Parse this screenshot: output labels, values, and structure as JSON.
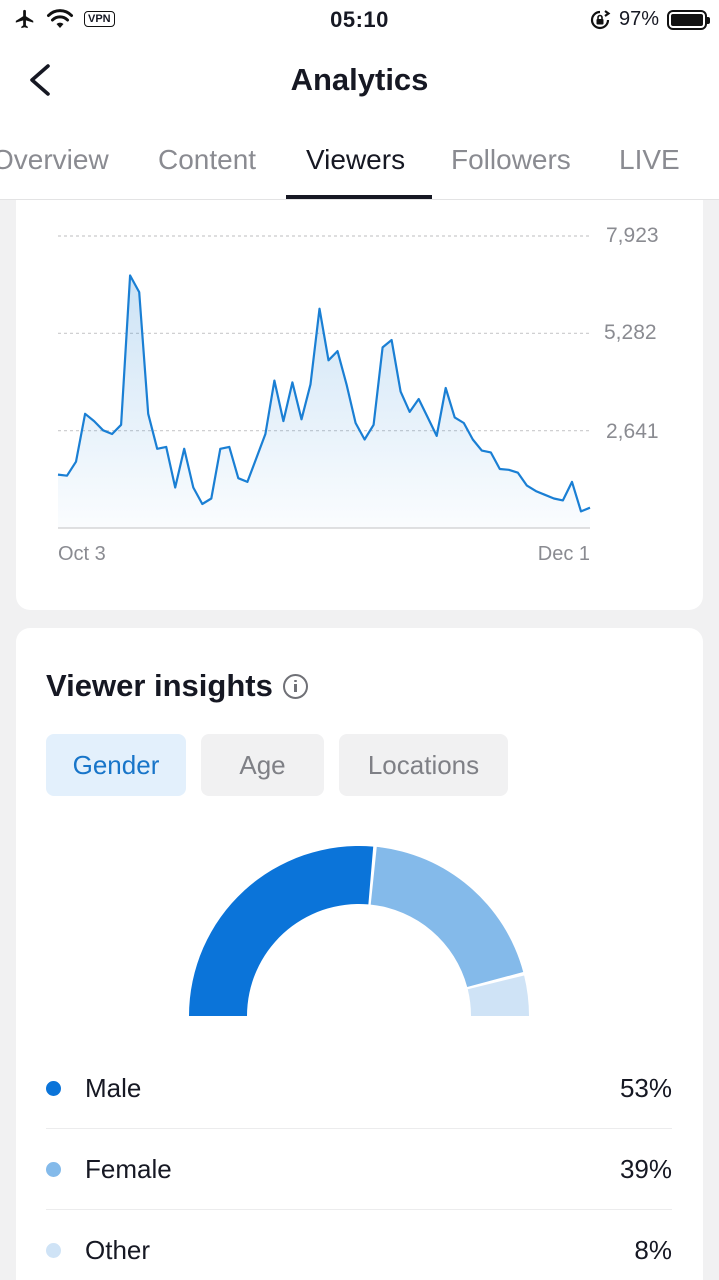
{
  "status_bar": {
    "time": "05:10",
    "vpn": "VPN",
    "battery": "97%"
  },
  "header": {
    "title": "Analytics"
  },
  "tabs": [
    {
      "label": "Overview",
      "active": false
    },
    {
      "label": "Content",
      "active": false
    },
    {
      "label": "Viewers",
      "active": true
    },
    {
      "label": "Followers",
      "active": false
    },
    {
      "label": "LIVE",
      "active": false
    }
  ],
  "chart_data": {
    "type": "area",
    "title": "",
    "x_start_label": "Oct 3",
    "x_end_label": "Dec 1",
    "ylim": [
      0,
      7923
    ],
    "y_ticks": [
      "7,923",
      "5,282",
      "2,641"
    ],
    "y_tick_values": [
      7923,
      5282,
      2641
    ],
    "grid": "horizontal dashed",
    "color": "#1a7fd4",
    "values": [
      1450,
      1420,
      1800,
      3100,
      2900,
      2650,
      2550,
      2800,
      6850,
      6400,
      3100,
      2150,
      2200,
      1100,
      2150,
      1100,
      650,
      800,
      2150,
      2200,
      1350,
      1250,
      1900,
      2550,
      4000,
      2900,
      3950,
      2950,
      3900,
      5950,
      4550,
      4800,
      3900,
      2850,
      2400,
      2800,
      4900,
      5100,
      3700,
      3150,
      3500,
      3000,
      2500,
      3800,
      3000,
      2850,
      2400,
      2100,
      2050,
      1600,
      1580,
      1500,
      1150,
      1000,
      900,
      800,
      750,
      1250,
      450,
      550
    ]
  },
  "insights": {
    "title": "Viewer insights",
    "chips": [
      {
        "label": "Gender",
        "active": true
      },
      {
        "label": "Age",
        "active": false
      },
      {
        "label": "Locations",
        "active": false
      }
    ],
    "legend": [
      {
        "label": "Male",
        "value": "53%",
        "percent": 53,
        "color": "#0b74d9"
      },
      {
        "label": "Female",
        "value": "39%",
        "percent": 39,
        "color": "#84baea"
      },
      {
        "label": "Other",
        "value": "8%",
        "percent": 8,
        "color": "#cfe3f6"
      }
    ]
  }
}
